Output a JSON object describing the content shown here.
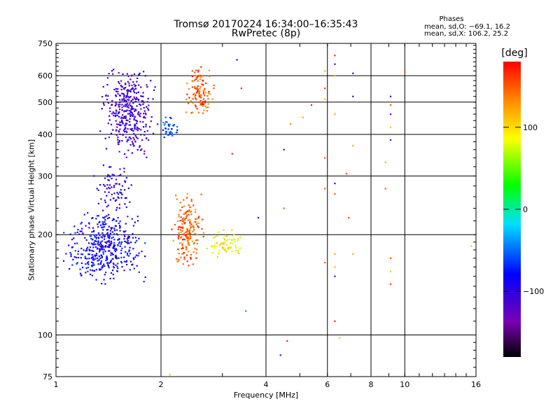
{
  "title": "Tromsø 20170224 16:34:00–16:35:43",
  "subtitle": "RwPretec (8p)",
  "phases": {
    "title": "Phases",
    "o_stats": "mean, sd,O: −69.1, 16.2",
    "x_stats": "mean, sd,X: 106.2, 25.2"
  },
  "colorbar": {
    "label": "[deg]",
    "ticks": [
      "100",
      "0",
      "−100"
    ],
    "tick_values": [
      100,
      0,
      -100
    ],
    "range": [
      -180,
      180
    ],
    "colormap": "rainbow (black → purple → blue → cyan → green → yellow → orange → red)"
  },
  "chart_data": {
    "type": "scatter",
    "title": "Tromsø 20170224 16:34:00–16:35:43",
    "subtitle": "RwPretec (8p)",
    "xlabel": "Frequency [MHz]",
    "ylabel": "Stationary phase Virtual Height [km]",
    "xscale": "log",
    "yscale": "log",
    "xlim": [
      1,
      16
    ],
    "ylim": [
      75,
      750
    ],
    "xticks": [
      1,
      2,
      4,
      6,
      8,
      10,
      16
    ],
    "xtick_labels": [
      "1",
      "2",
      "4",
      "6",
      "8",
      "10",
      "16"
    ],
    "yticks": [
      75,
      100,
      200,
      300,
      400,
      500,
      600,
      750
    ],
    "ytick_labels": [
      "75",
      "100",
      "200",
      "300",
      "400",
      "500",
      "600",
      "750"
    ],
    "grid": true,
    "color_encoding": "phase [deg]",
    "clusters": [
      {
        "x": [
          1.3,
          2.0
        ],
        "y": [
          340,
          650
        ],
        "phase": -110,
        "count": 380
      },
      {
        "x": [
          1.0,
          1.9
        ],
        "y": [
          140,
          240
        ],
        "phase": -85,
        "count": 440
      },
      {
        "x": [
          1.25,
          1.75
        ],
        "y": [
          230,
          330
        ],
        "phase": -100,
        "count": 80
      },
      {
        "x": [
          1.95,
          2.3
        ],
        "y": [
          380,
          470
        ],
        "phase": -60,
        "count": 40
      },
      {
        "x": [
          2.3,
          2.9
        ],
        "y": [
          440,
          650
        ],
        "phase": 150,
        "count": 120
      },
      {
        "x": [
          2.1,
          2.7
        ],
        "y": [
          160,
          270
        ],
        "phase": 150,
        "count": 180
      },
      {
        "x": [
          2.6,
          3.5
        ],
        "y": [
          170,
          210
        ],
        "phase": 90,
        "count": 70
      }
    ],
    "points": [
      {
        "x": 3.3,
        "y": 670,
        "phase": -110
      },
      {
        "x": 3.4,
        "y": 550,
        "phase": 170
      },
      {
        "x": 3.2,
        "y": 350,
        "phase": 170
      },
      {
        "x": 3.8,
        "y": 225,
        "phase": -100
      },
      {
        "x": 3.5,
        "y": 118,
        "phase": -40
      },
      {
        "x": 4.4,
        "y": 87,
        "phase": -110
      },
      {
        "x": 4.6,
        "y": 96,
        "phase": 170
      },
      {
        "x": 4.5,
        "y": 240,
        "phase": 150
      },
      {
        "x": 4.5,
        "y": 360,
        "phase": -110
      },
      {
        "x": 4.7,
        "y": 430,
        "phase": 130
      },
      {
        "x": 5.1,
        "y": 450,
        "phase": 120
      },
      {
        "x": 5.4,
        "y": 490,
        "phase": 170
      },
      {
        "x": 5.9,
        "y": 620,
        "phase": 120
      },
      {
        "x": 5.9,
        "y": 550,
        "phase": 160
      },
      {
        "x": 5.9,
        "y": 510,
        "phase": 110
      },
      {
        "x": 5.9,
        "y": 340,
        "phase": 150
      },
      {
        "x": 5.9,
        "y": 275,
        "phase": 150
      },
      {
        "x": 5.9,
        "y": 165,
        "phase": 150
      },
      {
        "x": 6.3,
        "y": 690,
        "phase": 170
      },
      {
        "x": 6.3,
        "y": 650,
        "phase": -110
      },
      {
        "x": 6.3,
        "y": 600,
        "phase": 120
      },
      {
        "x": 6.3,
        "y": 460,
        "phase": 120
      },
      {
        "x": 6.3,
        "y": 285,
        "phase": -110
      },
      {
        "x": 6.3,
        "y": 265,
        "phase": 150
      },
      {
        "x": 6.3,
        "y": 175,
        "phase": 120
      },
      {
        "x": 6.3,
        "y": 160,
        "phase": 120
      },
      {
        "x": 6.3,
        "y": 150,
        "phase": -110
      },
      {
        "x": 6.3,
        "y": 110,
        "phase": 170
      },
      {
        "x": 6.5,
        "y": 98,
        "phase": 110
      },
      {
        "x": 6.8,
        "y": 305,
        "phase": 150
      },
      {
        "x": 6.9,
        "y": 225,
        "phase": 150
      },
      {
        "x": 7.1,
        "y": 610,
        "phase": -110
      },
      {
        "x": 7.1,
        "y": 520,
        "phase": -110
      },
      {
        "x": 7.1,
        "y": 370,
        "phase": 120
      },
      {
        "x": 7.1,
        "y": 175,
        "phase": 120
      },
      {
        "x": 8.8,
        "y": 330,
        "phase": 120
      },
      {
        "x": 8.8,
        "y": 275,
        "phase": 150
      },
      {
        "x": 9.1,
        "y": 520,
        "phase": -110
      },
      {
        "x": 9.1,
        "y": 490,
        "phase": 150
      },
      {
        "x": 9.1,
        "y": 460,
        "phase": -110
      },
      {
        "x": 9.1,
        "y": 420,
        "phase": 110
      },
      {
        "x": 9.1,
        "y": 385,
        "phase": -110
      },
      {
        "x": 9.1,
        "y": 170,
        "phase": 150
      },
      {
        "x": 9.1,
        "y": 155,
        "phase": 110
      },
      {
        "x": 9.1,
        "y": 142,
        "phase": 160
      },
      {
        "x": 10.0,
        "y": 615,
        "phase": 150
      },
      {
        "x": 15.5,
        "y": 185,
        "phase": 110
      },
      {
        "x": 2.12,
        "y": 76,
        "phase": 110
      }
    ]
  }
}
